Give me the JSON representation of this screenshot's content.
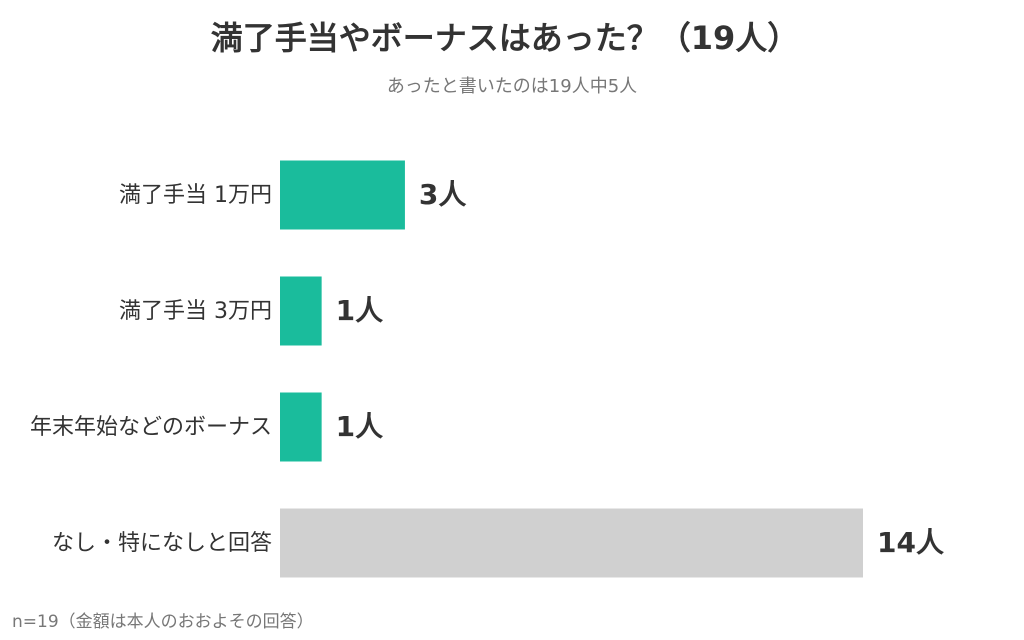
{
  "chart_data": {
    "type": "bar",
    "orientation": "horizontal",
    "title": "満了手当やボーナスはあった？（19人）",
    "subtitle": "あったと書いたのは19人中5人",
    "categories": [
      "満了手当 1万円",
      "満了手当 3万円",
      "年末年始などのボーナス",
      "なし・特になしと回答"
    ],
    "values": [
      3,
      1,
      1,
      14
    ],
    "value_labels": [
      "3人",
      "1人",
      "1人",
      "14人"
    ],
    "colors": [
      "#1abc9c",
      "#1abc9c",
      "#1abc9c",
      "#d0d0d0"
    ],
    "note": "n=19（金額は本人のおおよその回答）"
  }
}
